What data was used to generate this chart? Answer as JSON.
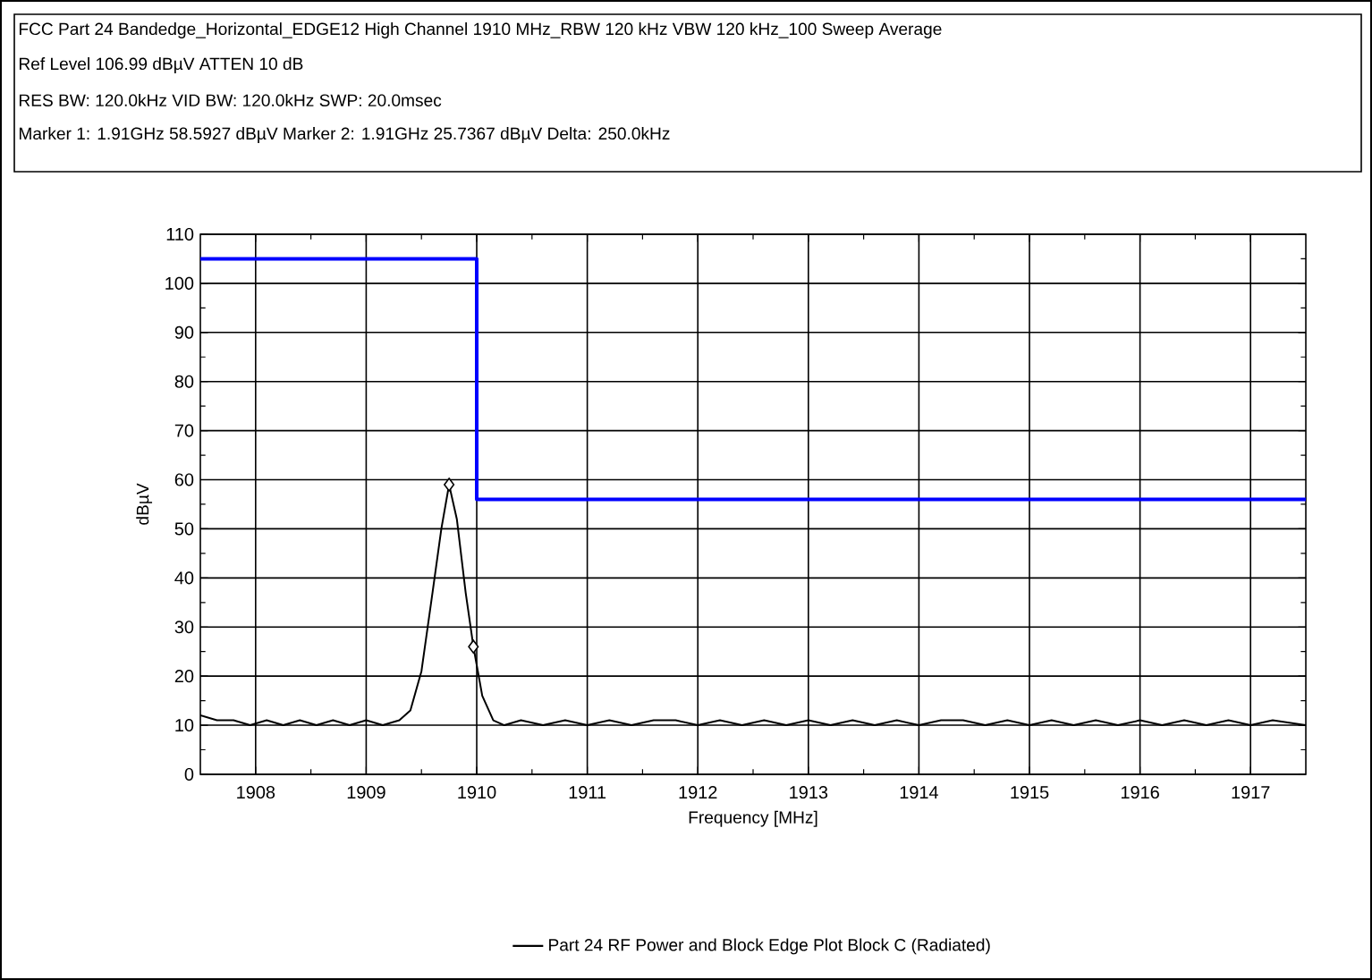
{
  "chart_data": {
    "type": "line",
    "title": "FCC Part 24 Bandedge_Horizontal_EDGE12 High Channel 1910 MHz_RBW 120 kHz VBW 120 kHz_100 Sweep Average",
    "annotations": [
      "Ref Level 106.99 dBµV    ATTEN 10 dB",
      "RES BW: 120.0kHz  VID BW: 120.0kHz  SWP: 20.0msec",
      "Marker 1: 1.91GHz  58.5927 dBµV    Marker 2: 1.91GHz  25.7367 dBµV Delta: 250.0kHz"
    ],
    "xlabel": "Frequency [MHz]",
    "ylabel": "dBµV",
    "xlim": [
      1907.5,
      1917.5
    ],
    "ylim": [
      0,
      110
    ],
    "xticks": [
      1908,
      1909,
      1910,
      1911,
      1912,
      1913,
      1914,
      1915,
      1916,
      1917
    ],
    "yticks": [
      0,
      10,
      20,
      30,
      40,
      50,
      60,
      70,
      80,
      90,
      100,
      110
    ],
    "grid": true,
    "legend": "bottom",
    "marker": "none",
    "line_style": "solid",
    "series": [
      {
        "name": "Part 24 RF Power and Block Edge Plot Block C (Radiated)",
        "color": "#000000",
        "x": [
          1907.5,
          1907.65,
          1907.8,
          1907.95,
          1908.1,
          1908.25,
          1908.4,
          1908.55,
          1908.7,
          1908.85,
          1909.0,
          1909.15,
          1909.3,
          1909.4,
          1909.5,
          1909.6,
          1909.68,
          1909.75,
          1909.82,
          1909.9,
          1909.97,
          1910.05,
          1910.15,
          1910.25,
          1910.4,
          1910.6,
          1910.8,
          1911.0,
          1911.2,
          1911.4,
          1911.6,
          1911.8,
          1912.0,
          1912.2,
          1912.4,
          1912.6,
          1912.8,
          1913.0,
          1913.2,
          1913.4,
          1913.6,
          1913.8,
          1914.0,
          1914.2,
          1914.4,
          1914.6,
          1914.8,
          1915.0,
          1915.2,
          1915.4,
          1915.6,
          1915.8,
          1916.0,
          1916.2,
          1916.4,
          1916.6,
          1916.8,
          1917.0,
          1917.2,
          1917.5
        ],
        "values": [
          12,
          11,
          11,
          10,
          11,
          10,
          11,
          10,
          11,
          10,
          11,
          10,
          11,
          13,
          21,
          37,
          50,
          59,
          52,
          37,
          26,
          16,
          11,
          10,
          11,
          10,
          11,
          10,
          11,
          10,
          11,
          11,
          10,
          11,
          10,
          11,
          10,
          11,
          10,
          11,
          10,
          11,
          10,
          11,
          11,
          10,
          11,
          10,
          11,
          10,
          11,
          10,
          11,
          10,
          11,
          10,
          11,
          10,
          11,
          10
        ]
      },
      {
        "type": "step",
        "color": "#0000ff",
        "x": [
          1907.5,
          1910,
          1917.5
        ],
        "values": [
          105,
          56,
          56
        ]
      },
      {
        "type": "scatter",
        "marker": "diamond",
        "color": "#000000",
        "x": [
          1909.75,
          1909.97
        ],
        "values": [
          59,
          26
        ]
      }
    ]
  }
}
